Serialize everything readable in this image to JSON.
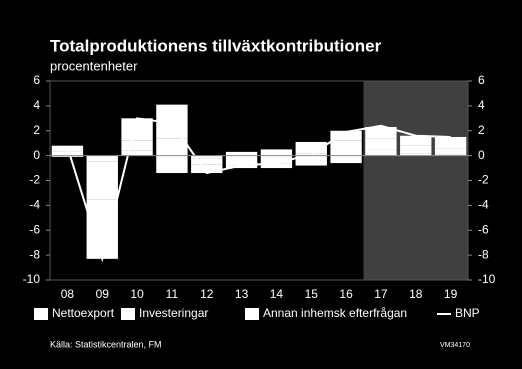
{
  "chart_data": {
    "type": "bar",
    "title": "Totalproduktionens tillväxtkontributioner",
    "subtitle": "procentenheter",
    "source": "Källa: Statistikcentralen, FM",
    "code": "VM34170",
    "categories": [
      "08",
      "09",
      "10",
      "11",
      "12",
      "13",
      "14",
      "15",
      "16",
      "17",
      "18",
      "19"
    ],
    "series": [
      {
        "name": "Nettoexport",
        "color": "#ffffff",
        "values": [
          0.3,
          -0.5,
          0.4,
          -1.4,
          -0.2,
          0.3,
          0.5,
          -0.8,
          -0.6,
          0.5,
          0.2,
          0.1
        ]
      },
      {
        "name": "Investeringar",
        "color": "#ffffff",
        "values": [
          -0.1,
          -3.0,
          0.8,
          1.4,
          -0.5,
          -0.8,
          -0.6,
          0.2,
          1.2,
          0.9,
          0.6,
          0.5
        ]
      },
      {
        "name": "Annan inhemsk efterfrågan",
        "color": "#ffffff",
        "values": [
          0.5,
          -4.8,
          1.8,
          2.7,
          -0.7,
          -0.2,
          -0.4,
          0.9,
          0.8,
          0.9,
          0.8,
          0.9
        ]
      },
      {
        "name": "BNP",
        "type": "line",
        "color": "#ffffff",
        "values": [
          0.7,
          -8.3,
          3.0,
          2.6,
          -1.4,
          -0.8,
          -0.6,
          0.1,
          1.9,
          2.4,
          1.6,
          1.5
        ]
      }
    ],
    "shade": {
      "from": "17",
      "to": "19",
      "color": "#404040"
    },
    "ylim": [
      -10,
      6
    ],
    "yticks": [
      -10,
      -8,
      -6,
      -4,
      -2,
      0,
      2,
      4,
      6
    ],
    "y2lim": [
      -10,
      6
    ],
    "y2ticks": [
      -10,
      -8,
      -6,
      -4,
      -2,
      0,
      2,
      4,
      6
    ]
  }
}
